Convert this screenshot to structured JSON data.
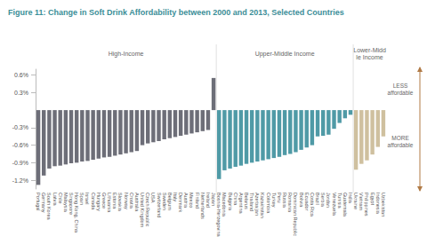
{
  "chart_data": {
    "type": "bar",
    "title": "Figure 11: Change in Soft Drink Affordability between 2000 and 2013, Selected Countries",
    "categories": [
      "Portugal",
      "Germany",
      "South Korea",
      "Latvia",
      "Chile",
      "Malaysia",
      "Singapore",
      "Hong Kong, China",
      "Spain",
      "Israel",
      "Canada",
      "Hungary",
      "Greece",
      "Lithuania",
      "Estonia",
      "Slovakia",
      "Norway",
      "Croatia",
      "Australia",
      "United Kingdom",
      "Czech Republic",
      "USA",
      "Switzerland",
      "Sweden",
      "Belgium",
      "Italy",
      "Denmark",
      "Austria",
      "Mexico",
      "Finland",
      "Netherlands",
      "Ireland",
      "Japan",
      "Bosnia-Herzegovina",
      "Macedonia",
      "Bulgaria",
      "China",
      "Argentina",
      "Belarus",
      "Thailand",
      "Azerbaijan",
      "Kazakhstan",
      "Colombia",
      "Turkey",
      "Peru",
      "Russia",
      "Romania",
      "Dominican Republic",
      "Bolivia",
      "Ecuador",
      "Costa Rica",
      "Brazil",
      "Serbia",
      "Jordan",
      "Venezuela",
      "Tunisia",
      "Guatemala",
      "India",
      "Ukraine",
      "Vietnam",
      "Philippines",
      "Egypt",
      "Indonesia",
      "Uzbekistan"
    ],
    "series": [
      {
        "name": "High-Income",
        "color": "#6d6e78",
        "values": [
          -1.28,
          -1.12,
          -1.0,
          -0.96,
          -0.95,
          -0.93,
          -0.91,
          -0.9,
          -0.88,
          -0.87,
          -0.85,
          -0.83,
          -0.81,
          -0.8,
          -0.78,
          -0.76,
          -0.74,
          -0.72,
          -0.7,
          -0.6,
          -0.57,
          -0.55,
          -0.53,
          -0.5,
          -0.48,
          -0.46,
          -0.44,
          -0.42,
          -0.4,
          -0.38,
          -0.36,
          -0.34,
          0.55,
          null,
          null,
          null,
          null,
          null,
          null,
          null,
          null,
          null,
          null,
          null,
          null,
          null,
          null,
          null,
          null,
          null,
          null,
          null,
          null,
          null,
          null,
          null,
          null,
          null,
          null,
          null,
          null,
          null,
          null,
          null
        ]
      },
      {
        "name": "Upper-Middle Income",
        "color": "#4f9aa6",
        "values": [
          null,
          null,
          null,
          null,
          null,
          null,
          null,
          null,
          null,
          null,
          null,
          null,
          null,
          null,
          null,
          null,
          null,
          null,
          null,
          null,
          null,
          null,
          null,
          null,
          null,
          null,
          null,
          null,
          null,
          null,
          null,
          null,
          null,
          -1.18,
          -1.03,
          -1.0,
          -0.97,
          -0.95,
          -0.92,
          -0.9,
          -0.88,
          -0.86,
          -0.84,
          -0.82,
          -0.8,
          -0.77,
          -0.75,
          -0.72,
          -0.68,
          -0.64,
          -0.6,
          -0.45,
          -0.44,
          -0.42,
          -0.32,
          -0.22,
          -0.14,
          -0.08,
          null,
          null,
          null,
          null,
          null,
          null
        ]
      },
      {
        "name": "Lower-Middle Income",
        "color": "#cfc09f",
        "values": [
          null,
          null,
          null,
          null,
          null,
          null,
          null,
          null,
          null,
          null,
          null,
          null,
          null,
          null,
          null,
          null,
          null,
          null,
          null,
          null,
          null,
          null,
          null,
          null,
          null,
          null,
          null,
          null,
          null,
          null,
          null,
          null,
          null,
          null,
          null,
          null,
          null,
          null,
          null,
          null,
          null,
          null,
          null,
          null,
          null,
          null,
          null,
          null,
          null,
          null,
          null,
          null,
          null,
          null,
          null,
          null,
          null,
          null,
          -1.02,
          -0.92,
          -0.86,
          -0.76,
          -0.63,
          -0.45
        ]
      }
    ],
    "ylim": [
      -1.35,
      0.7
    ],
    "yticks": [
      {
        "value": 0.6,
        "label": "0.6%"
      },
      {
        "value": 0.3,
        "label": "0.3%"
      },
      {
        "value": -0.3,
        "label": "-0.3%"
      },
      {
        "value": -0.6,
        "label": "-0.6%"
      },
      {
        "value": -0.9,
        "label": "-0.9%"
      },
      {
        "value": -1.2,
        "label": "-1.2%"
      }
    ],
    "grid": false,
    "annotations": [
      "LESS affordable",
      "MORE affordable"
    ]
  }
}
